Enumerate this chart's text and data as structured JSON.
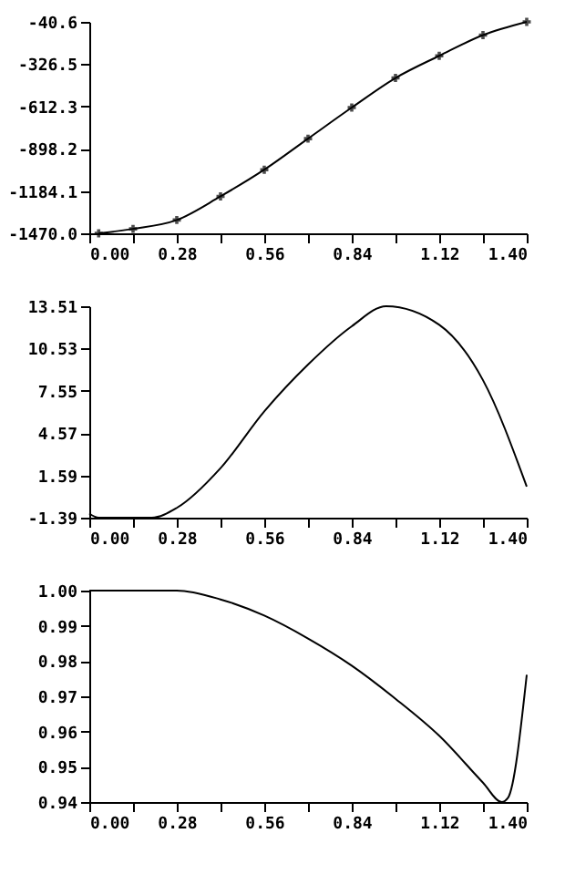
{
  "chart_data": [
    {
      "type": "line",
      "x": [
        0.03,
        0.14,
        0.28,
        0.42,
        0.56,
        0.7,
        0.84,
        0.98,
        1.12,
        1.26,
        1.4
      ],
      "values": [
        -1470,
        -1440,
        -1380,
        -1220,
        -1040,
        -830,
        -620,
        -420,
        -270,
        -130,
        -40.6
      ],
      "color": "#000000",
      "marker": "cross",
      "xlim": [
        0,
        1.4
      ],
      "ylim": [
        -1470,
        -40.6
      ],
      "xticks": [
        {
          "value": 0,
          "label": "0.00"
        },
        {
          "value": 0.14,
          "label": null
        },
        {
          "value": 0.28,
          "label": "0.28"
        },
        {
          "value": 0.42,
          "label": null
        },
        {
          "value": 0.56,
          "label": "0.56"
        },
        {
          "value": 0.7,
          "label": null
        },
        {
          "value": 0.84,
          "label": "0.84"
        },
        {
          "value": 0.98,
          "label": null
        },
        {
          "value": 1.12,
          "label": "1.12"
        },
        {
          "value": 1.26,
          "label": null
        },
        {
          "value": 1.4,
          "label": "1.40"
        }
      ],
      "yticks": [
        {
          "value": -1470,
          "label": "-1470.0"
        },
        {
          "value": -1184.1,
          "label": "-1184.1"
        },
        {
          "value": -898.2,
          "label": "-898.2"
        },
        {
          "value": -612.3,
          "label": "-612.3"
        },
        {
          "value": -326.5,
          "label": "-326.5"
        },
        {
          "value": -40.6,
          "label": "-40.6"
        }
      ]
    },
    {
      "type": "line",
      "x": [
        0,
        0.03,
        0.2,
        0.28,
        0.42,
        0.56,
        0.7,
        0.84,
        0.95,
        1.12,
        1.26,
        1.4
      ],
      "values": [
        -1.1,
        -1.39,
        -1.39,
        -0.7,
        2.1,
        6.1,
        9.4,
        12.1,
        13.51,
        12.2,
        8.3,
        0.8
      ],
      "color": "#000000",
      "xlim": [
        0,
        1.4
      ],
      "ylim": [
        -1.39,
        13.51
      ],
      "xticks": [
        {
          "value": 0,
          "label": "0.00"
        },
        {
          "value": 0.14,
          "label": null
        },
        {
          "value": 0.28,
          "label": "0.28"
        },
        {
          "value": 0.42,
          "label": null
        },
        {
          "value": 0.56,
          "label": "0.56"
        },
        {
          "value": 0.7,
          "label": null
        },
        {
          "value": 0.84,
          "label": "0.84"
        },
        {
          "value": 0.98,
          "label": null
        },
        {
          "value": 1.12,
          "label": "1.12"
        },
        {
          "value": 1.26,
          "label": null
        },
        {
          "value": 1.4,
          "label": "1.40"
        }
      ],
      "yticks": [
        -1.39,
        1.59,
        4.57,
        7.55,
        10.53,
        13.51
      ]
    },
    {
      "type": "line",
      "x": [
        0,
        0.28,
        0.42,
        0.56,
        0.7,
        0.84,
        0.98,
        1.12,
        1.26,
        1.32,
        1.34,
        1.4
      ],
      "values": [
        1.0,
        1.0,
        0.9975,
        0.9929,
        0.9864,
        0.9787,
        0.9693,
        0.9588,
        0.9455,
        0.94,
        0.9412,
        0.9761
      ],
      "color": "#000000",
      "xlim": [
        0,
        1.4
      ],
      "ylim": [
        0.94,
        1.0
      ],
      "xticks": [
        {
          "value": 0,
          "label": "0.00"
        },
        {
          "value": 0.14,
          "label": null
        },
        {
          "value": 0.28,
          "label": "0.28"
        },
        {
          "value": 0.42,
          "label": null
        },
        {
          "value": 0.56,
          "label": "0.56"
        },
        {
          "value": 0.7,
          "label": null
        },
        {
          "value": 0.84,
          "label": "0.84"
        },
        {
          "value": 0.98,
          "label": null
        },
        {
          "value": 1.12,
          "label": "1.12"
        },
        {
          "value": 1.26,
          "label": null
        },
        {
          "value": 1.4,
          "label": "1.40"
        }
      ],
      "yticks": [
        {
          "value": 0.94,
          "label": "0.94"
        },
        {
          "value": 0.95,
          "label": "0.95"
        },
        {
          "value": 0.96,
          "label": "0.96"
        },
        {
          "value": 0.97,
          "label": "0.97"
        },
        {
          "value": 0.98,
          "label": "0.98"
        },
        {
          "value": 0.99,
          "label": "0.99"
        },
        {
          "value": 1.0,
          "label": "1.00"
        }
      ]
    }
  ]
}
